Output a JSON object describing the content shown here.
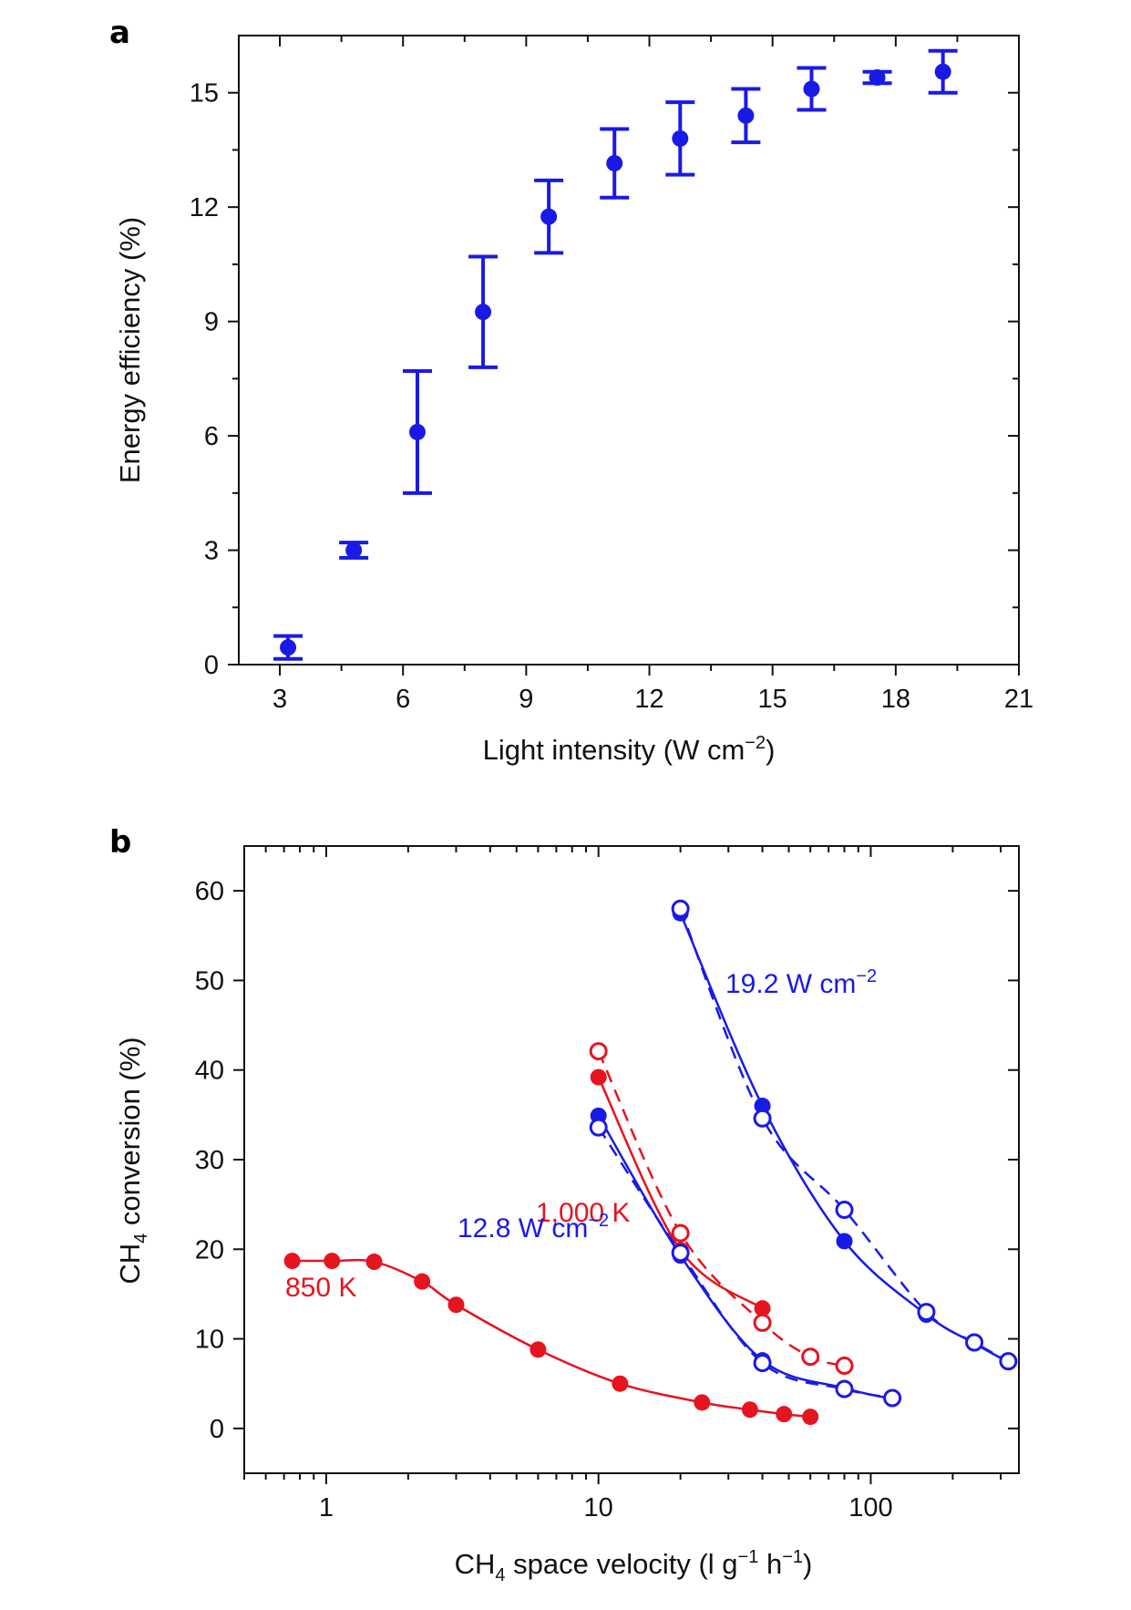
{
  "chart_data": [
    {
      "panel": "a",
      "type": "scatter",
      "xlabel": "Light intensity (W cm",
      "xlabel_sup": "−2",
      "xlabel_close": ")",
      "ylabel": "Energy efficiency (%)",
      "xlim": [
        2,
        21
      ],
      "ylim": [
        0,
        16.5
      ],
      "xticks": [
        3,
        6,
        9,
        12,
        15,
        18,
        21
      ],
      "yticks": [
        0,
        3,
        6,
        9,
        12,
        15
      ],
      "color": "#1a1ae6",
      "points": [
        {
          "x": 3.2,
          "y": 0.45,
          "err": 0.3
        },
        {
          "x": 4.8,
          "y": 3.0,
          "err": 0.2
        },
        {
          "x": 6.35,
          "y": 6.1,
          "err": 1.6
        },
        {
          "x": 7.95,
          "y": 9.25,
          "err": 1.45
        },
        {
          "x": 9.55,
          "y": 11.75,
          "err": 0.95
        },
        {
          "x": 11.15,
          "y": 13.15,
          "err": 0.9
        },
        {
          "x": 12.75,
          "y": 13.8,
          "err": 0.95
        },
        {
          "x": 14.35,
          "y": 14.4,
          "err": 0.7
        },
        {
          "x": 15.95,
          "y": 15.1,
          "err": 0.55
        },
        {
          "x": 17.55,
          "y": 15.4,
          "err": 0.15
        },
        {
          "x": 19.15,
          "y": 15.55,
          "err": 0.55
        }
      ]
    },
    {
      "panel": "b",
      "type": "line",
      "x_scale": "log",
      "xlabel_pre": "CH",
      "xlabel_sub": "4",
      "xlabel_mid": " space velocity (l g",
      "xlabel_sup1": "−1",
      "xlabel_mid2": " h",
      "xlabel_sup2": "−1",
      "xlabel_close": ")",
      "ylabel_pre": "CH",
      "ylabel_sub": "4",
      "ylabel_post": " conversion (%)",
      "xlim": [
        0.5,
        350
      ],
      "ylim": [
        -5,
        65
      ],
      "xticks": [
        1,
        10,
        100
      ],
      "xtick_labels": [
        "1",
        "10",
        "100"
      ],
      "yticks": [
        0,
        10,
        20,
        30,
        40,
        50,
        60
      ],
      "series": [
        {
          "name": "850 K",
          "color": "#e6141e",
          "marker": "filled",
          "line": "solid",
          "x": [
            0.75,
            1.05,
            1.5,
            2.25,
            3,
            6,
            12,
            24,
            36,
            48,
            60
          ],
          "y": [
            18.7,
            18.7,
            18.6,
            16.4,
            13.8,
            8.8,
            5.0,
            2.9,
            2.1,
            1.6,
            1.3
          ]
        },
        {
          "name": "1,000 K filled",
          "color": "#e6141e",
          "marker": "filled",
          "line": "solid",
          "x": [
            10,
            20,
            40
          ],
          "y": [
            39.2,
            19.9,
            13.4
          ]
        },
        {
          "name": "1,000 K open",
          "color": "#e6141e",
          "marker": "open",
          "line": "dashed",
          "x": [
            10,
            20,
            40,
            60,
            80
          ],
          "y": [
            42.1,
            21.8,
            11.8,
            8.0,
            7.0
          ]
        },
        {
          "name": "12.8 W cm-2 filled",
          "color": "#1a1ae6",
          "marker": "filled",
          "line": "solid",
          "x": [
            10,
            20,
            40,
            80,
            120
          ],
          "y": [
            34.9,
            19.3,
            7.6,
            4.5,
            3.3
          ]
        },
        {
          "name": "12.8 W cm-2 open",
          "color": "#1a1ae6",
          "marker": "open",
          "line": "dashed",
          "x": [
            10,
            20,
            40,
            80,
            120
          ],
          "y": [
            33.6,
            19.6,
            7.3,
            4.4,
            3.4
          ]
        },
        {
          "name": "19.2 W cm-2 filled",
          "color": "#1a1ae6",
          "marker": "filled",
          "line": "solid",
          "x": [
            20,
            40,
            80,
            160,
            240,
            320
          ],
          "y": [
            57.5,
            36.0,
            20.9,
            12.7,
            9.5,
            7.4
          ]
        },
        {
          "name": "19.2 W cm-2 open",
          "color": "#1a1ae6",
          "marker": "open",
          "line": "dashed",
          "x": [
            20,
            40,
            80,
            160,
            240,
            320
          ],
          "y": [
            58.0,
            34.6,
            24.4,
            13.0,
            9.6,
            7.5
          ]
        }
      ],
      "annotations": [
        {
          "text": "1,000 K",
          "color": "#e6141e"
        },
        {
          "text": "850 K",
          "color": "#e6141e"
        },
        {
          "text": "12.8 W cm",
          "sup": "−2",
          "color": "#1a1ae6"
        },
        {
          "text": "19.2 W cm",
          "sup": "−2",
          "color": "#1a1ae6"
        }
      ]
    }
  ]
}
